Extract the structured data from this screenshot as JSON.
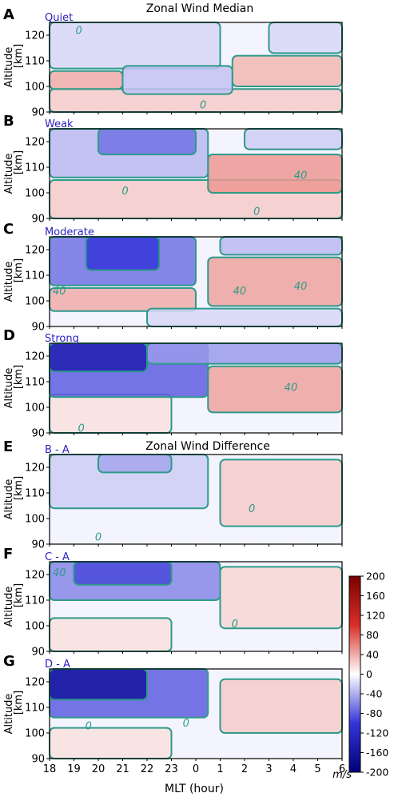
{
  "titles": {
    "median": "Zonal Wind Median",
    "difference": "Zonal Wind Difference"
  },
  "xaxis": {
    "label": "MLT (hour)",
    "ticks": [
      "18",
      "19",
      "20",
      "21",
      "22",
      "23",
      "0",
      "1",
      "2",
      "3",
      "4",
      "5",
      "6"
    ]
  },
  "yaxis": {
    "label": "Altitude",
    "unit": "[km]",
    "ticks": [
      "90",
      "100",
      "110",
      "120"
    ]
  },
  "colorbar": {
    "ticks": [
      "200",
      "160",
      "120",
      "80",
      "40",
      "0",
      "-40",
      "-80",
      "-120",
      "-160",
      "-200"
    ],
    "unit": "m/s",
    "colors": {
      "max": "#7a0000",
      "high": "#d73027",
      "mid": "#ffffff",
      "low": "#3535d8",
      "min": "#00007a"
    },
    "contour_color": "#2e9a8a"
  },
  "chart_data": [
    {
      "type": "heatmap",
      "panel": "A",
      "name": "Quiet",
      "xlim": [
        18,
        30
      ],
      "ylim": [
        90,
        125
      ],
      "xlabel": "MLT (hour)",
      "ylabel": "Altitude [km]",
      "contour_labels": [
        {
          "text": "0",
          "x": 19.2,
          "y": 122
        },
        {
          "text": "0",
          "x": 24.3,
          "y": 93
        }
      ],
      "regions": [
        {
          "sign": "pos",
          "x0": 18,
          "x1": 30,
          "y0": 90,
          "y1": 99,
          "value": 25
        },
        {
          "sign": "pos",
          "x0": 18,
          "x1": 21,
          "y0": 99,
          "y1": 106,
          "value": 40
        },
        {
          "sign": "pos",
          "x0": 25.5,
          "x1": 30,
          "y0": 100,
          "y1": 112,
          "value": 35
        },
        {
          "sign": "neg",
          "x0": 18,
          "x1": 25,
          "y0": 107,
          "y1": 125,
          "value": -20
        },
        {
          "sign": "neg",
          "x0": 21,
          "x1": 25.5,
          "y0": 97,
          "y1": 108,
          "value": -30
        },
        {
          "sign": "neg",
          "x0": 27,
          "x1": 30,
          "y0": 113,
          "y1": 125,
          "value": -20
        }
      ]
    },
    {
      "type": "heatmap",
      "panel": "B",
      "name": "Weak",
      "xlim": [
        18,
        30
      ],
      "ylim": [
        90,
        125
      ],
      "contour_labels": [
        {
          "text": "40",
          "x": 28.3,
          "y": 107
        },
        {
          "text": "0",
          "x": 21.1,
          "y": 101
        },
        {
          "text": "0",
          "x": 26.5,
          "y": 93
        }
      ],
      "regions": [
        {
          "sign": "pos",
          "x0": 18,
          "x1": 30,
          "y0": 90,
          "y1": 105,
          "value": 25
        },
        {
          "sign": "pos",
          "x0": 24.5,
          "x1": 30,
          "y0": 100,
          "y1": 115,
          "value": 50
        },
        {
          "sign": "neg",
          "x0": 18,
          "x1": 24.5,
          "y0": 106,
          "y1": 125,
          "value": -35
        },
        {
          "sign": "neg",
          "x0": 20,
          "x1": 24,
          "y0": 115,
          "y1": 125,
          "value": -70
        },
        {
          "sign": "neg",
          "x0": 26,
          "x1": 30,
          "y0": 117,
          "y1": 125,
          "value": -25
        }
      ]
    },
    {
      "type": "heatmap",
      "panel": "C",
      "name": "Moderate",
      "xlim": [
        18,
        30
      ],
      "ylim": [
        90,
        125
      ],
      "contour_labels": [
        {
          "text": "40",
          "x": 18.4,
          "y": 104
        },
        {
          "text": "40",
          "x": 25.8,
          "y": 104
        },
        {
          "text": "40",
          "x": 28.3,
          "y": 106
        }
      ],
      "regions": [
        {
          "sign": "pos",
          "x0": 18,
          "x1": 24,
          "y0": 96,
          "y1": 105,
          "value": 40
        },
        {
          "sign": "pos",
          "x0": 24.5,
          "x1": 30,
          "y0": 98,
          "y1": 117,
          "value": 45
        },
        {
          "sign": "neg",
          "x0": 18,
          "x1": 24,
          "y0": 106,
          "y1": 125,
          "value": -70
        },
        {
          "sign": "neg",
          "x0": 19.5,
          "x1": 22.5,
          "y0": 112,
          "y1": 125,
          "value": -100
        },
        {
          "sign": "neg",
          "x0": 25,
          "x1": 30,
          "y0": 118,
          "y1": 125,
          "value": -35
        },
        {
          "sign": "neg",
          "x0": 22,
          "x1": 30,
          "y0": 90,
          "y1": 97,
          "value": -20
        }
      ]
    },
    {
      "type": "heatmap",
      "panel": "D",
      "name": "Strong",
      "xlim": [
        18,
        30
      ],
      "ylim": [
        90,
        125
      ],
      "contour_labels": [
        {
          "text": "40",
          "x": 27.9,
          "y": 108
        },
        {
          "text": "0",
          "x": 19.3,
          "y": 92
        }
      ],
      "regions": [
        {
          "sign": "pos",
          "x0": 24.5,
          "x1": 30,
          "y0": 98,
          "y1": 116,
          "value": 45
        },
        {
          "sign": "pos",
          "x0": 18,
          "x1": 23,
          "y0": 90,
          "y1": 105,
          "value": 15
        },
        {
          "sign": "neg",
          "x0": 18,
          "x1": 24.5,
          "y0": 104,
          "y1": 125,
          "value": -80
        },
        {
          "sign": "neg",
          "x0": 18,
          "x1": 22,
          "y0": 114,
          "y1": 125,
          "value": -140
        },
        {
          "sign": "neg",
          "x0": 22,
          "x1": 30,
          "y0": 117,
          "y1": 125,
          "value": -50
        }
      ]
    },
    {
      "type": "heatmap",
      "panel": "E",
      "name": "B - A",
      "xlim": [
        18,
        30
      ],
      "ylim": [
        90,
        125
      ],
      "contour_labels": [
        {
          "text": "0",
          "x": 26.3,
          "y": 104
        },
        {
          "text": "0",
          "x": 20,
          "y": 93
        }
      ],
      "regions": [
        {
          "sign": "pos",
          "x0": 25,
          "x1": 30,
          "y0": 97,
          "y1": 123,
          "value": 25
        },
        {
          "sign": "neg",
          "x0": 18,
          "x1": 24.5,
          "y0": 104,
          "y1": 125,
          "value": -25
        },
        {
          "sign": "neg",
          "x0": 20,
          "x1": 23,
          "y0": 118,
          "y1": 125,
          "value": -45
        }
      ]
    },
    {
      "type": "heatmap",
      "panel": "F",
      "name": "C - A",
      "xlim": [
        18,
        30
      ],
      "ylim": [
        90,
        125
      ],
      "contour_labels": [
        {
          "text": "40",
          "x": 18.4,
          "y": 121
        },
        {
          "text": "0",
          "x": 25.6,
          "y": 101
        }
      ],
      "regions": [
        {
          "sign": "pos",
          "x0": 25,
          "x1": 30,
          "y0": 99,
          "y1": 123,
          "value": 20
        },
        {
          "sign": "pos",
          "x0": 18,
          "x1": 23,
          "y0": 90,
          "y1": 103,
          "value": 15
        },
        {
          "sign": "neg",
          "x0": 18,
          "x1": 25,
          "y0": 110,
          "y1": 125,
          "value": -60
        },
        {
          "sign": "neg",
          "x0": 19,
          "x1": 23,
          "y0": 116,
          "y1": 125,
          "value": -90
        }
      ]
    },
    {
      "type": "heatmap",
      "panel": "G",
      "name": "D - A",
      "xlim": [
        18,
        30
      ],
      "ylim": [
        90,
        125
      ],
      "contour_labels": [
        {
          "text": "0",
          "x": 19.6,
          "y": 103
        },
        {
          "text": "0",
          "x": 23.6,
          "y": 104
        }
      ],
      "regions": [
        {
          "sign": "pos",
          "x0": 25,
          "x1": 30,
          "y0": 100,
          "y1": 121,
          "value": 25
        },
        {
          "sign": "pos",
          "x0": 18,
          "x1": 23,
          "y0": 90,
          "y1": 102,
          "value": 15
        },
        {
          "sign": "neg",
          "x0": 18,
          "x1": 24.5,
          "y0": 106,
          "y1": 125,
          "value": -80
        },
        {
          "sign": "neg",
          "x0": 18,
          "x1": 22,
          "y0": 113,
          "y1": 125,
          "value": -160
        }
      ]
    }
  ]
}
